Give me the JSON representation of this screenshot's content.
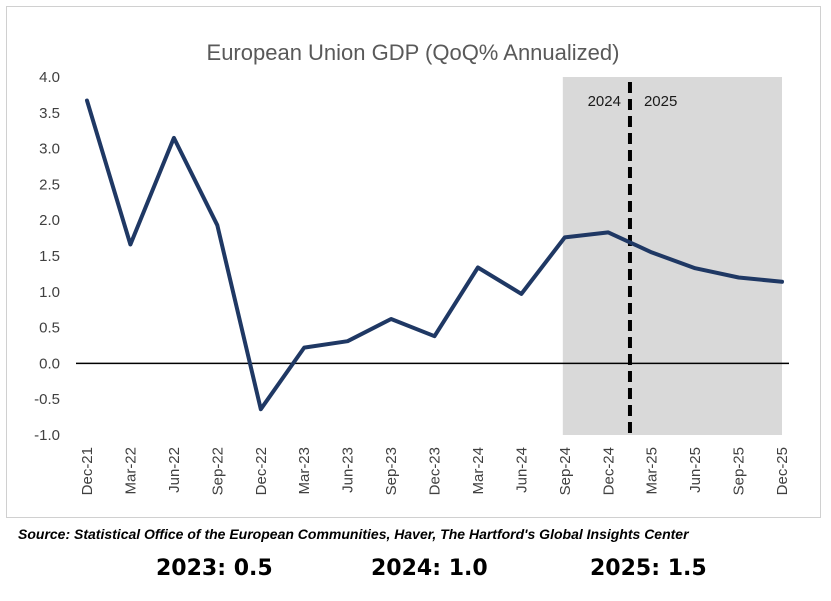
{
  "chart_data": {
    "type": "line",
    "title": "European Union GDP (QoQ% Annualized)",
    "xlabel": "",
    "ylabel": "",
    "categories": [
      "Dec-21",
      "Mar-22",
      "Jun-22",
      "Sep-22",
      "Dec-22",
      "Mar-23",
      "Jun-23",
      "Sep-23",
      "Dec-23",
      "Mar-24",
      "Jun-24",
      "Sep-24",
      "Dec-24",
      "Mar-25",
      "Jun-25",
      "Sep-25",
      "Dec-25"
    ],
    "series": [
      {
        "values": [
          3.67,
          1.66,
          3.15,
          1.93,
          -0.64,
          0.22,
          0.31,
          0.62,
          0.38,
          1.34,
          0.97,
          1.76,
          1.83,
          1.55,
          1.33,
          1.2,
          1.14
        ]
      }
    ],
    "ylim": [
      -1.0,
      4.0
    ],
    "yticks": [
      "4.0",
      "3.5",
      "3.0",
      "2.5",
      "2.0",
      "1.5",
      "1.0",
      "0.5",
      "0.0",
      "-0.5",
      "-1.0"
    ],
    "shaded_region": {
      "from_category": "Sep-24",
      "to_category": "Dec-25",
      "color": "#d9d9d9"
    },
    "divider": {
      "after_category": "Dec-24",
      "left_label": "2024",
      "right_label": "2025"
    },
    "line_color": "#1f3864",
    "grid": false
  },
  "source": "Source: Statistical Office of the European Communities, Haver, The Hartford's Global Insights Center",
  "annual": [
    {
      "label": "2023: 0.5"
    },
    {
      "label": "2024: 1.0"
    },
    {
      "label": "2025: 1.5"
    }
  ]
}
